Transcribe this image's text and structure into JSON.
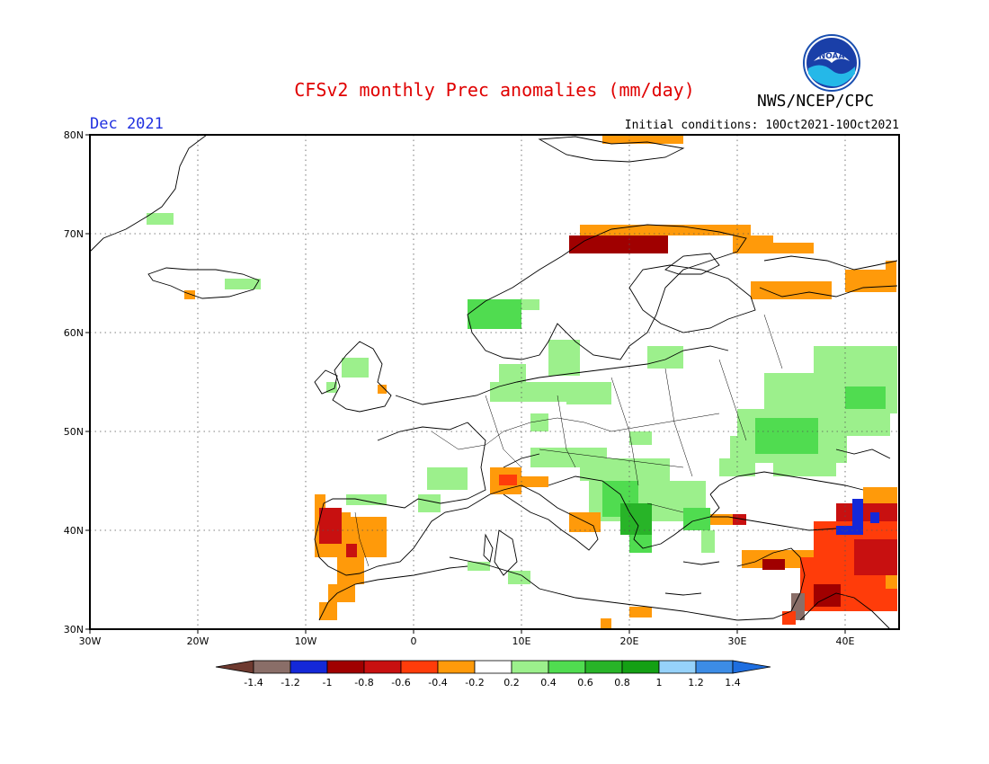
{
  "title": "CFSv2 monthly Prec anomalies (mm/day)",
  "agency": "NWS/NCEP/CPC",
  "month": "Dec 2021",
  "initial_conditions": "Initial conditions: 10Oct2021-10Oct2021",
  "logo_text": "NOAA",
  "map": {
    "lat_labels": [
      "80N",
      "70N",
      "60N",
      "50N",
      "40N",
      "30N"
    ],
    "lon_labels": [
      "30W",
      "20W",
      "10W",
      "0",
      "10E",
      "20E",
      "30E",
      "40E"
    ]
  },
  "colorbar": {
    "labels": [
      "-1.4",
      "-1.2",
      "-1",
      "-0.8",
      "-0.6",
      "-0.4",
      "-0.2",
      "0.2",
      "0.4",
      "0.6",
      "0.8",
      "1",
      "1.2",
      "1.4"
    ],
    "colors": [
      "#8a6e68",
      "#1428d8",
      "#a00000",
      "#c81010",
      "#ff3c0a",
      "#ff9a0a",
      "#ffffff",
      "#9cf08c",
      "#50dc50",
      "#28b428",
      "#14a014",
      "#96d2fa",
      "#3c8ce6"
    ],
    "low_arrow_color": "#6e3a30",
    "high_arrow_color": "#1e6ee0"
  },
  "colors": {
    "title": "#e00000",
    "month": "#2030e0",
    "dry_strong": "#a00000",
    "dry": "#ff9a0a",
    "wet": "#9cf08c"
  }
}
